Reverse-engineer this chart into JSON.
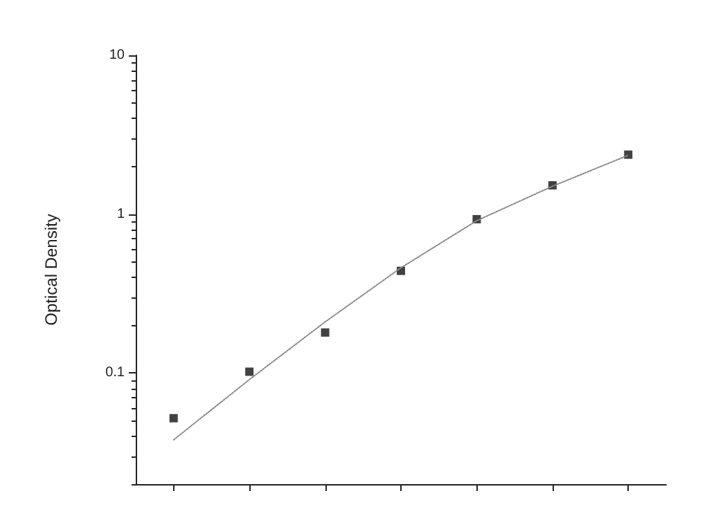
{
  "chart_data": {
    "type": "scatter",
    "ylabel": "Optical Density",
    "log": "y",
    "marker": "square",
    "grid": false,
    "categories": [
      null,
      null,
      null,
      null,
      null,
      null,
      null
    ],
    "ylim": [
      0.02,
      10
    ],
    "yticks": [
      0.1,
      1,
      10
    ],
    "series": [
      {
        "color": "#111111",
        "values": [
          0.052,
          0.102,
          0.18,
          0.44,
          0.93,
          1.52,
          2.37
        ]
      },
      {
        "type": "line",
        "color": "#888888",
        "marker": "none",
        "line_style": "dotted",
        "values": [
          0.038,
          0.091,
          0.21,
          0.46,
          0.91,
          1.5,
          2.35
        ]
      }
    ]
  }
}
